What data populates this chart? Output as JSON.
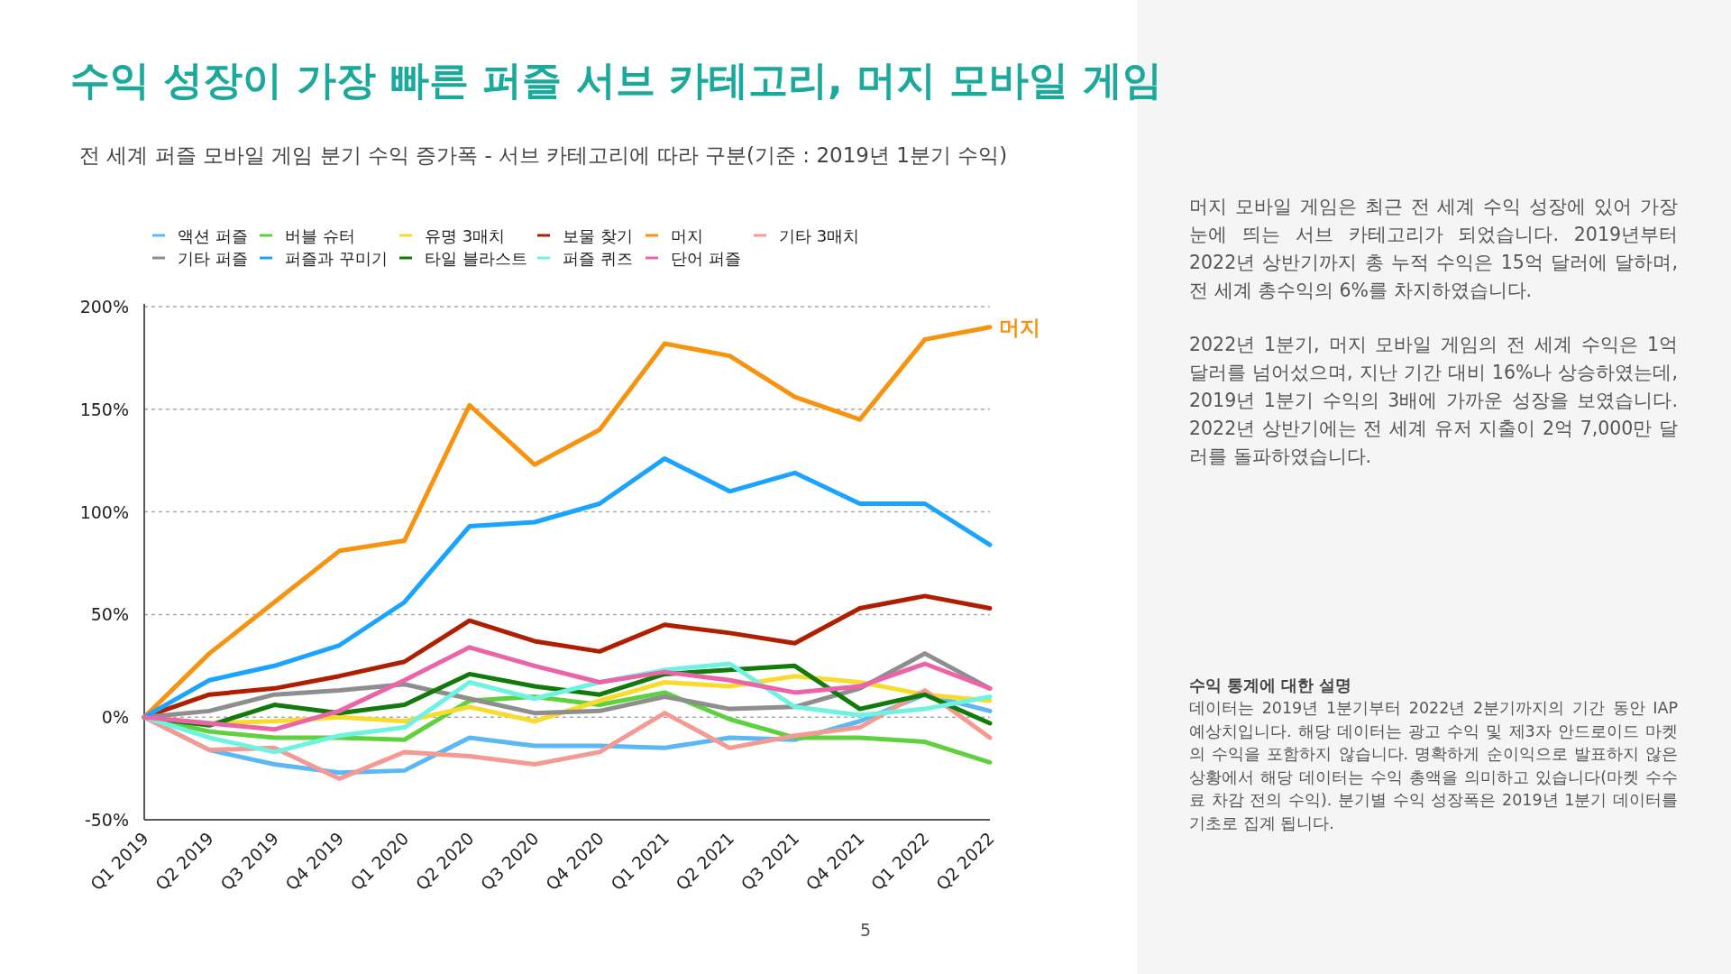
{
  "chart_data": {
    "type": "line",
    "title": "수익 성장이 가장 빠른 퍼즐 서브 카테고리, 머지 모바일 게임",
    "subtitle": "전 세계 퍼즐 모바일 게임 분기 수익 증가폭 - 서브 카테고리에 따라 구분(기준 : 2019년 1분기 수익)",
    "categories": [
      "Q1 2019",
      "Q2 2019",
      "Q3 2019",
      "Q4 2019",
      "Q1 2020",
      "Q2 2020",
      "Q3 2020",
      "Q4 2020",
      "Q1 2021",
      "Q2 2021",
      "Q3 2021",
      "Q4 2021",
      "Q1 2022",
      "Q2 2022"
    ],
    "series": [
      {
        "name": "액션 퍼즐",
        "color": "#5bb8f5",
        "values": [
          0,
          -16,
          -23,
          -27,
          -26,
          -10,
          -14,
          -14,
          -15,
          -10,
          -11,
          -2,
          11,
          3
        ]
      },
      {
        "name": "버블 슈터",
        "color": "#5fd13f",
        "values": [
          0,
          -7,
          -10,
          -10,
          -11,
          8,
          10,
          6,
          12,
          -1,
          -10,
          -10,
          -12,
          -22
        ]
      },
      {
        "name": "유명 3매치",
        "color": "#f7dc2f",
        "values": [
          0,
          -3,
          -2,
          0,
          -2,
          5,
          -2,
          8,
          17,
          15,
          20,
          17,
          11,
          8
        ]
      },
      {
        "name": "보물 찾기",
        "color": "#b01e00",
        "values": [
          0,
          11,
          14,
          20,
          27,
          47,
          37,
          32,
          45,
          41,
          36,
          53,
          59,
          53
        ]
      },
      {
        "name": "머지",
        "color": "#f7930f",
        "values": [
          0,
          31,
          56,
          81,
          86,
          152,
          123,
          140,
          182,
          176,
          156,
          145,
          184,
          190
        ]
      },
      {
        "name": "기타 3매치",
        "color": "#f59a92",
        "values": [
          0,
          -16,
          -15,
          -30,
          -17,
          -19,
          -23,
          -17,
          2,
          -15,
          -9,
          -5,
          13,
          -10
        ]
      },
      {
        "name": "기타 퍼즐",
        "color": "#8e8e8e",
        "values": [
          0,
          3,
          11,
          13,
          16,
          9,
          2,
          3,
          10,
          4,
          5,
          14,
          31,
          14
        ]
      },
      {
        "name": "퍼즐과 꾸미기",
        "color": "#1aa3ff",
        "values": [
          0,
          18,
          25,
          35,
          56,
          93,
          95,
          104,
          126,
          110,
          119,
          104,
          104,
          84
        ]
      },
      {
        "name": "타일 블라스트",
        "color": "#117a0a",
        "values": [
          0,
          -4,
          6,
          2,
          6,
          21,
          15,
          11,
          21,
          23,
          25,
          4,
          11,
          -3
        ]
      },
      {
        "name": "퍼즐 퀴즈",
        "color": "#6ff2e0",
        "values": [
          0,
          -10,
          -17,
          -9,
          -5,
          17,
          9,
          17,
          23,
          26,
          5,
          1,
          4,
          10
        ]
      },
      {
        "name": "단어 퍼즐",
        "color": "#eb64a8",
        "values": [
          0,
          -3,
          -6,
          3,
          18,
          34,
          25,
          17,
          22,
          18,
          12,
          15,
          26,
          14
        ]
      }
    ],
    "ylim": [
      -50,
      200
    ],
    "yticks": [
      {
        "value": -50,
        "label": "-50%"
      },
      {
        "value": 0,
        "label": "0%"
      },
      {
        "value": 50,
        "label": "50%"
      },
      {
        "value": 100,
        "label": "100%"
      },
      {
        "value": 150,
        "label": "150%"
      },
      {
        "value": 200,
        "label": "200%"
      }
    ],
    "grid": "y",
    "legend": "top",
    "annotations": [
      {
        "text": "머지",
        "x": "Q2 2022",
        "y": 190
      },
      "머지 모바일 게임은 최근 전 세계 수익 성장에 있어 가장 눈에 띄는 서브 카테고리가 되었습니다. 2019년부터 2022년 상반기까지 총 누적 수익은 15억 달러에 달하며, 전 세계 총수익의 6%를 차지하였습니다.",
      "2022년 1분기, 머지 모바일 게임의 전 세계 수익은 1억 달러를 넘어섰으며, 지난 기간 대비 16%나 상승하였는데, 2019년 1분기 수익의 3배에 가까운 성장을 보였습니다. 2022년 상반기에는 전 세계 유저 지출이 2억 7,000만 달러를 돌파하였습니다.",
      "수익 통계에 대한 설명",
      "데이터는 2019년 1분기부터 2022년 2분기까지의 기간 동안 IAP 예상치입니다. 해당 데이터는 광고 수익 및 제3자 안드로이드 마켓의 수익을 포함하지 않습니다. 명확하게 순이익으로 발표하지 않은 상황에서 해당 데이터는 수익 총액을 의미하고 있습니다(마켓 수수료 차감 전의 수익). 분기별 수익 성장폭은 2019년 1분기 데이터를 기초로 집계 됩니다.",
      "5"
    ]
  }
}
